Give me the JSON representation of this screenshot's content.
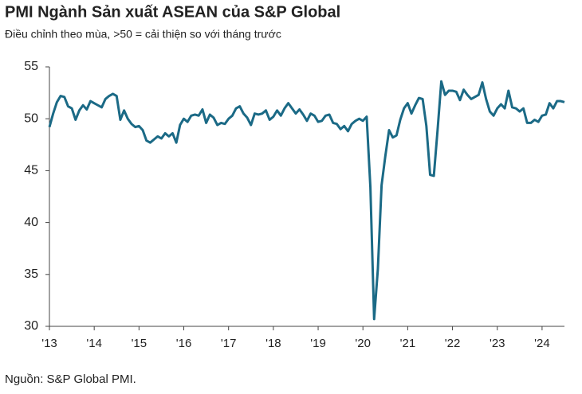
{
  "chart_data": {
    "type": "line",
    "title": "PMI Ngành Sản xuất ASEAN của S&P Global",
    "subtitle": "Điều chỉnh theo mùa, >50 = cải thiện so với tháng trước",
    "source": "Nguồn: S&P Global PMI.",
    "color": "#1b6a86",
    "categories": [
      "'13",
      null,
      null,
      null,
      null,
      null,
      null,
      null,
      null,
      null,
      null,
      null,
      "'14",
      null,
      null,
      null,
      null,
      null,
      null,
      null,
      null,
      null,
      null,
      null,
      "'15",
      null,
      null,
      null,
      null,
      null,
      null,
      null,
      null,
      null,
      null,
      null,
      "'16",
      null,
      null,
      null,
      null,
      null,
      null,
      null,
      null,
      null,
      null,
      null,
      "'17",
      null,
      null,
      null,
      null,
      null,
      null,
      null,
      null,
      null,
      null,
      null,
      "'18",
      null,
      null,
      null,
      null,
      null,
      null,
      null,
      null,
      null,
      null,
      null,
      "'19",
      null,
      null,
      null,
      null,
      null,
      null,
      null,
      null,
      null,
      null,
      null,
      "'20",
      null,
      null,
      null,
      null,
      null,
      null,
      null,
      null,
      null,
      null,
      null,
      "'21",
      null,
      null,
      null,
      null,
      null,
      null,
      null,
      null,
      null,
      null,
      null,
      "'22",
      null,
      null,
      null,
      null,
      null,
      null,
      null,
      null,
      null,
      null,
      null,
      "'23",
      null,
      null,
      null,
      null,
      null,
      null,
      null,
      null,
      null,
      null,
      null,
      "'24",
      null,
      null,
      null,
      null,
      null,
      null
    ],
    "values": [
      49.2,
      50.5,
      51.6,
      52.2,
      52.1,
      51.2,
      51.0,
      49.9,
      50.8,
      51.3,
      50.9,
      51.7,
      51.5,
      51.3,
      51.1,
      51.9,
      52.2,
      52.4,
      52.2,
      49.9,
      50.8,
      50.0,
      49.5,
      49.2,
      49.3,
      48.9,
      47.9,
      47.7,
      48.0,
      48.3,
      48.1,
      48.6,
      48.3,
      48.6,
      47.7,
      49.4,
      50.0,
      49.7,
      50.3,
      50.4,
      50.3,
      50.9,
      49.6,
      50.4,
      50.1,
      49.4,
      49.6,
      49.5,
      50.0,
      50.3,
      51.0,
      51.2,
      50.5,
      50.1,
      49.4,
      50.5,
      50.4,
      50.5,
      50.8,
      49.9,
      50.2,
      50.8,
      50.3,
      51.0,
      51.5,
      51.0,
      50.5,
      50.9,
      50.4,
      49.8,
      50.5,
      50.3,
      49.7,
      49.8,
      50.3,
      50.4,
      49.6,
      49.5,
      49.0,
      49.3,
      48.8,
      49.5,
      49.8,
      50.0,
      49.8,
      50.2,
      43.4,
      30.7,
      35.5,
      43.6,
      46.4,
      48.9,
      48.2,
      48.4,
      49.9,
      51.0,
      51.5,
      50.5,
      51.3,
      52.0,
      51.9,
      49.3,
      44.6,
      44.5,
      48.9,
      53.6,
      52.3,
      52.7,
      52.7,
      52.6,
      51.8,
      52.8,
      52.3,
      51.9,
      52.1,
      52.3,
      53.5,
      51.9,
      50.7,
      50.3,
      51.0,
      51.4,
      51.0,
      52.7,
      51.1,
      51.0,
      50.7,
      51.0,
      49.6,
      49.6,
      49.9,
      49.7,
      50.3,
      50.4,
      51.5,
      51.0,
      51.7,
      51.7,
      51.6
    ],
    "ylim": [
      30,
      55
    ],
    "yticks": [
      30,
      35,
      40,
      45,
      50,
      55
    ],
    "grid": false
  }
}
